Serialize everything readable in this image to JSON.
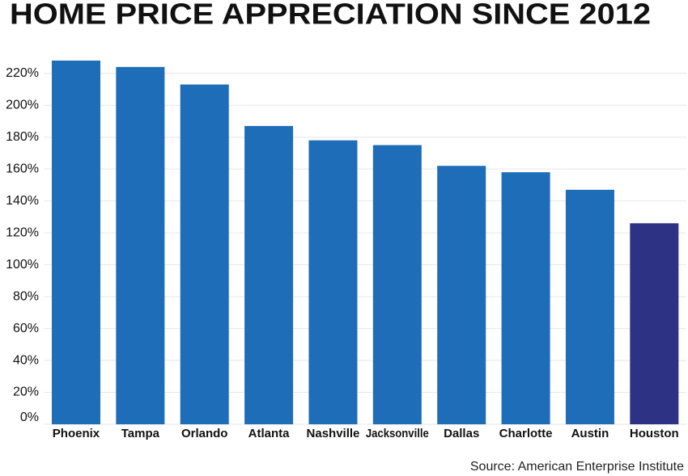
{
  "chart_data": {
    "type": "bar",
    "title": "HOME PRICE APPRECIATION SINCE 2012",
    "source": "Source: American Enterprise Institute",
    "categories": [
      "Phoenix",
      "Tampa",
      "Orlando",
      "Atlanta",
      "Nashville",
      "Jacksonville",
      "Dallas",
      "Charlotte",
      "Austin",
      "Houston"
    ],
    "values": [
      228,
      224,
      213,
      187,
      178,
      175,
      162,
      158,
      147,
      126
    ],
    "colors": [
      "#1e6db8",
      "#1e6db8",
      "#1e6db8",
      "#1e6db8",
      "#1e6db8",
      "#1e6db8",
      "#1e6db8",
      "#1e6db8",
      "#1e6db8",
      "#2e3284"
    ],
    "ylim": [
      0,
      230
    ],
    "yticks": [
      {
        "value": 0,
        "label": "0%"
      },
      {
        "value": 20,
        "label": "20%"
      },
      {
        "value": 40,
        "label": "40%"
      },
      {
        "value": 60,
        "label": "60%"
      },
      {
        "value": 80,
        "label": "80%"
      },
      {
        "value": 100,
        "label": "100%"
      },
      {
        "value": 120,
        "label": "120%"
      },
      {
        "value": 140,
        "label": "140%"
      },
      {
        "value": 160,
        "label": "160%"
      },
      {
        "value": 180,
        "label": "180%"
      },
      {
        "value": 200,
        "label": "200%"
      },
      {
        "value": 220,
        "label": "220%"
      }
    ],
    "grid": true
  }
}
